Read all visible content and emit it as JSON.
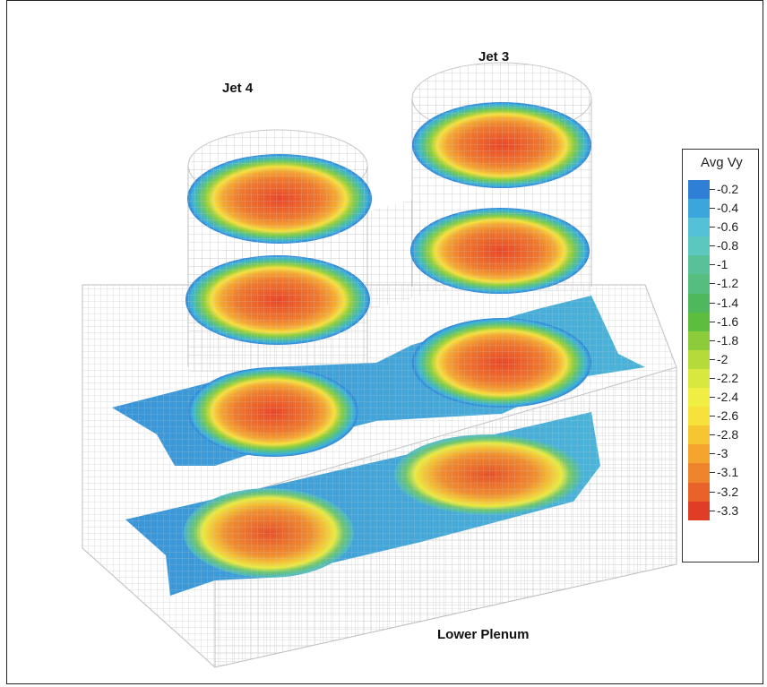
{
  "labels": {
    "jet4": "Jet 4",
    "jet3": "Jet 3",
    "lower_plenum": "Lower Plenum"
  },
  "legend": {
    "title": "Avg Vy",
    "entries": [
      {
        "label": "-0.2",
        "color": "#2f7fd6"
      },
      {
        "label": "-0.4",
        "color": "#3aa6dc"
      },
      {
        "label": "-0.6",
        "color": "#55c1d8"
      },
      {
        "label": "-0.8",
        "color": "#5cc7bd"
      },
      {
        "label": "-1",
        "color": "#57c19a"
      },
      {
        "label": "-1.2",
        "color": "#55bd7e"
      },
      {
        "label": "-1.4",
        "color": "#4eb85c"
      },
      {
        "label": "-1.6",
        "color": "#5dbd3f"
      },
      {
        "label": "-1.8",
        "color": "#8ccc3a"
      },
      {
        "label": "-2",
        "color": "#b5db3b"
      },
      {
        "label": "-2.2",
        "color": "#d8e83e"
      },
      {
        "label": "-2.4",
        "color": "#f0ee42"
      },
      {
        "label": "-2.6",
        "color": "#f6e23a"
      },
      {
        "label": "-2.8",
        "color": "#f6c632"
      },
      {
        "label": "-3",
        "color": "#f3a52e"
      },
      {
        "label": "-3.1",
        "color": "#ee842c"
      },
      {
        "label": "-3.2",
        "color": "#e8622a"
      },
      {
        "label": "-3.3",
        "color": "#e03d27"
      }
    ]
  }
}
